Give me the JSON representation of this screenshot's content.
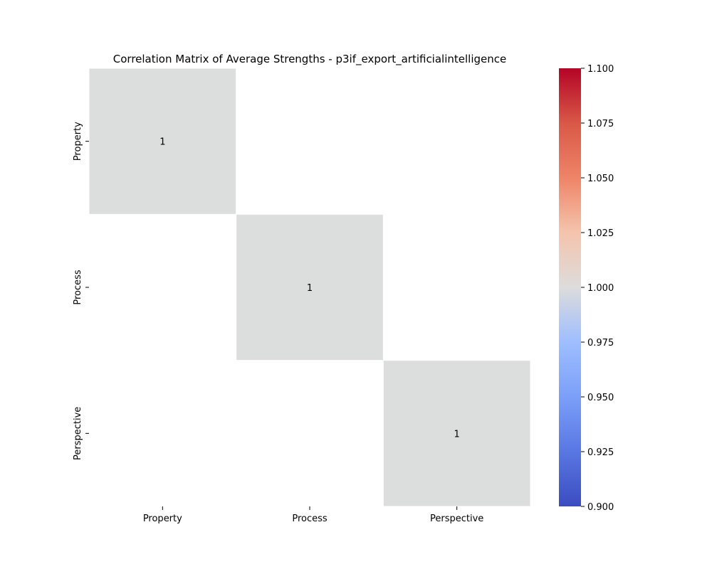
{
  "chart_data": {
    "type": "heatmap",
    "title": "Correlation Matrix of Average Strengths - p3if_export_artificialintelligence",
    "x_categories": [
      "Property",
      "Process",
      "Perspective"
    ],
    "y_categories": [
      "Property",
      "Process",
      "Perspective"
    ],
    "values": [
      [
        1,
        null,
        null
      ],
      [
        null,
        1,
        null
      ],
      [
        null,
        null,
        1
      ]
    ],
    "annotations": [
      [
        "1",
        "",
        ""
      ],
      [
        "",
        "1",
        ""
      ],
      [
        "",
        "",
        "1"
      ]
    ],
    "colormap": "coolwarm",
    "colorbar": {
      "min": 0.9,
      "max": 1.1,
      "ticks": [
        "0.900",
        "0.925",
        "0.950",
        "0.975",
        "1.000",
        "1.025",
        "1.050",
        "1.075",
        "1.100"
      ],
      "tick_values": [
        0.9,
        0.925,
        0.95,
        0.975,
        1.0,
        1.025,
        1.05,
        1.075,
        1.1
      ]
    },
    "cell_fill_color": "#dcdddd",
    "missing_color": "#ffffff",
    "cell_border_color": "#ffffff",
    "xlabel": "",
    "ylabel": ""
  }
}
